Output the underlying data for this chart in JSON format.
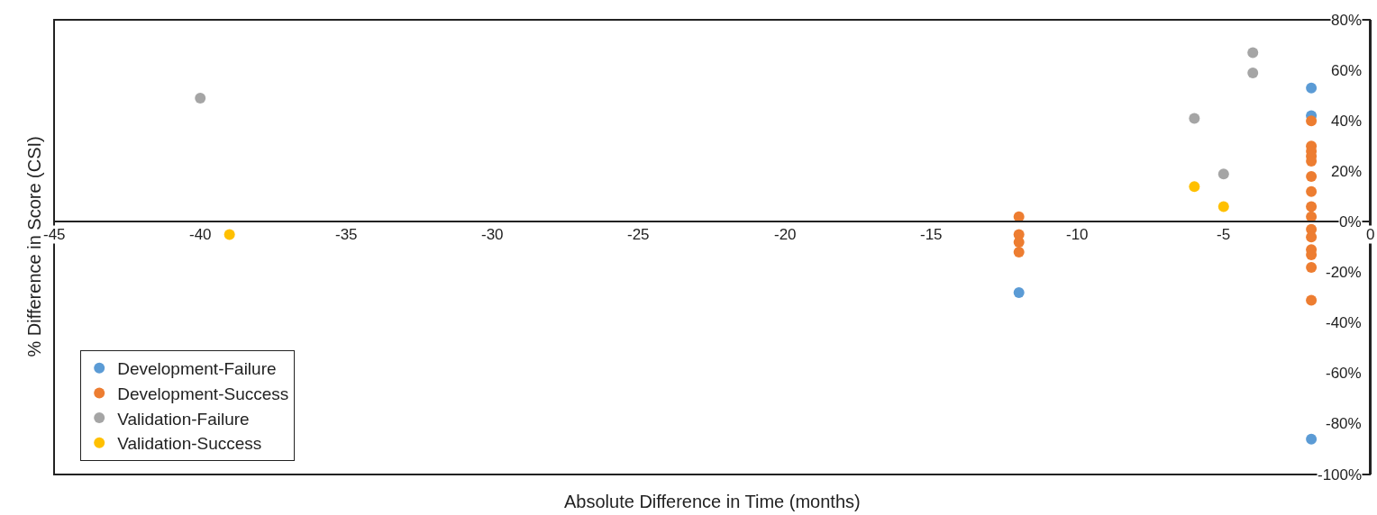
{
  "chart_data": {
    "type": "scatter",
    "xlabel": "Absolute Difference in Time (months)",
    "ylabel": "% Difference in Score (CSI)",
    "xlim": [
      -45,
      0
    ],
    "xticks": [
      -45,
      -40,
      -35,
      -30,
      -25,
      -20,
      -15,
      -10,
      -5,
      0
    ],
    "ylim": [
      -100,
      80
    ],
    "yticks": [
      {
        "value": -100,
        "label": "-100%"
      },
      {
        "value": -80,
        "label": "-80%"
      },
      {
        "value": -60,
        "label": "-60%"
      },
      {
        "value": -40,
        "label": "-40%"
      },
      {
        "value": -20,
        "label": "-20%"
      },
      {
        "value": 0,
        "label": "0%"
      },
      {
        "value": 20,
        "label": "20%"
      },
      {
        "value": 40,
        "label": "40%"
      },
      {
        "value": 60,
        "label": "60%"
      },
      {
        "value": 80,
        "label": "80%"
      }
    ],
    "grid": false,
    "legend": "bottom left",
    "marker": "circle",
    "series": [
      {
        "name": "Development-Failure",
        "color": "#5b9bd5",
        "x": [
          -2,
          -2,
          -12,
          -2
        ],
        "values": [
          53,
          42,
          -28,
          -86
        ]
      },
      {
        "name": "Development-Success",
        "color": "#ed7d31",
        "x": [
          -2,
          -2,
          -2,
          -2,
          -2,
          -2,
          -2,
          -2,
          -2,
          -2,
          -2,
          -2,
          -2,
          -2,
          -2,
          -12,
          -12,
          -12,
          -12
        ],
        "values": [
          40,
          30,
          28,
          26,
          24,
          18,
          12,
          6,
          2,
          -3,
          -6,
          -11,
          -13,
          -18,
          -31,
          2,
          -5,
          -8,
          -12
        ]
      },
      {
        "name": "Validation-Failure",
        "color": "#a5a5a5",
        "x": [
          -4,
          -4,
          -6,
          -5,
          -40
        ],
        "values": [
          67,
          59,
          41,
          19,
          49
        ]
      },
      {
        "name": "Validation-Success",
        "color": "#ffc000",
        "x": [
          -39,
          -6,
          -5
        ],
        "values": [
          -5,
          14,
          6
        ]
      }
    ]
  }
}
